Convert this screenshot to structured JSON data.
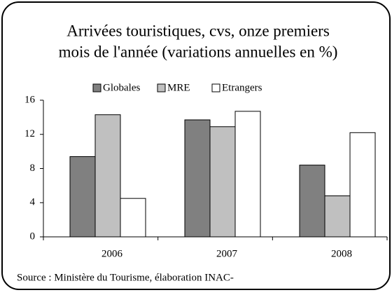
{
  "chart_data": {
    "type": "bar",
    "title": [
      "Arrivées touristiques, cvs, onze premiers",
      "mois de l'année  (variations annuelles en %)"
    ],
    "categories": [
      "2006",
      "2007",
      "2008"
    ],
    "series": [
      {
        "name": "Globales",
        "color": "#808080",
        "values": [
          9.4,
          13.7,
          8.4
        ]
      },
      {
        "name": "MRE",
        "color": "#c0c0c0",
        "values": [
          14.3,
          12.9,
          4.8
        ]
      },
      {
        "name": "Etrangers",
        "color": "#ffffff",
        "values": [
          4.5,
          14.7,
          12.2
        ]
      }
    ],
    "ylim": [
      0,
      16
    ],
    "yticks": [
      0,
      4,
      8,
      12,
      16
    ],
    "source": "Source : Ministère du Tourisme, élaboration INAC-"
  }
}
